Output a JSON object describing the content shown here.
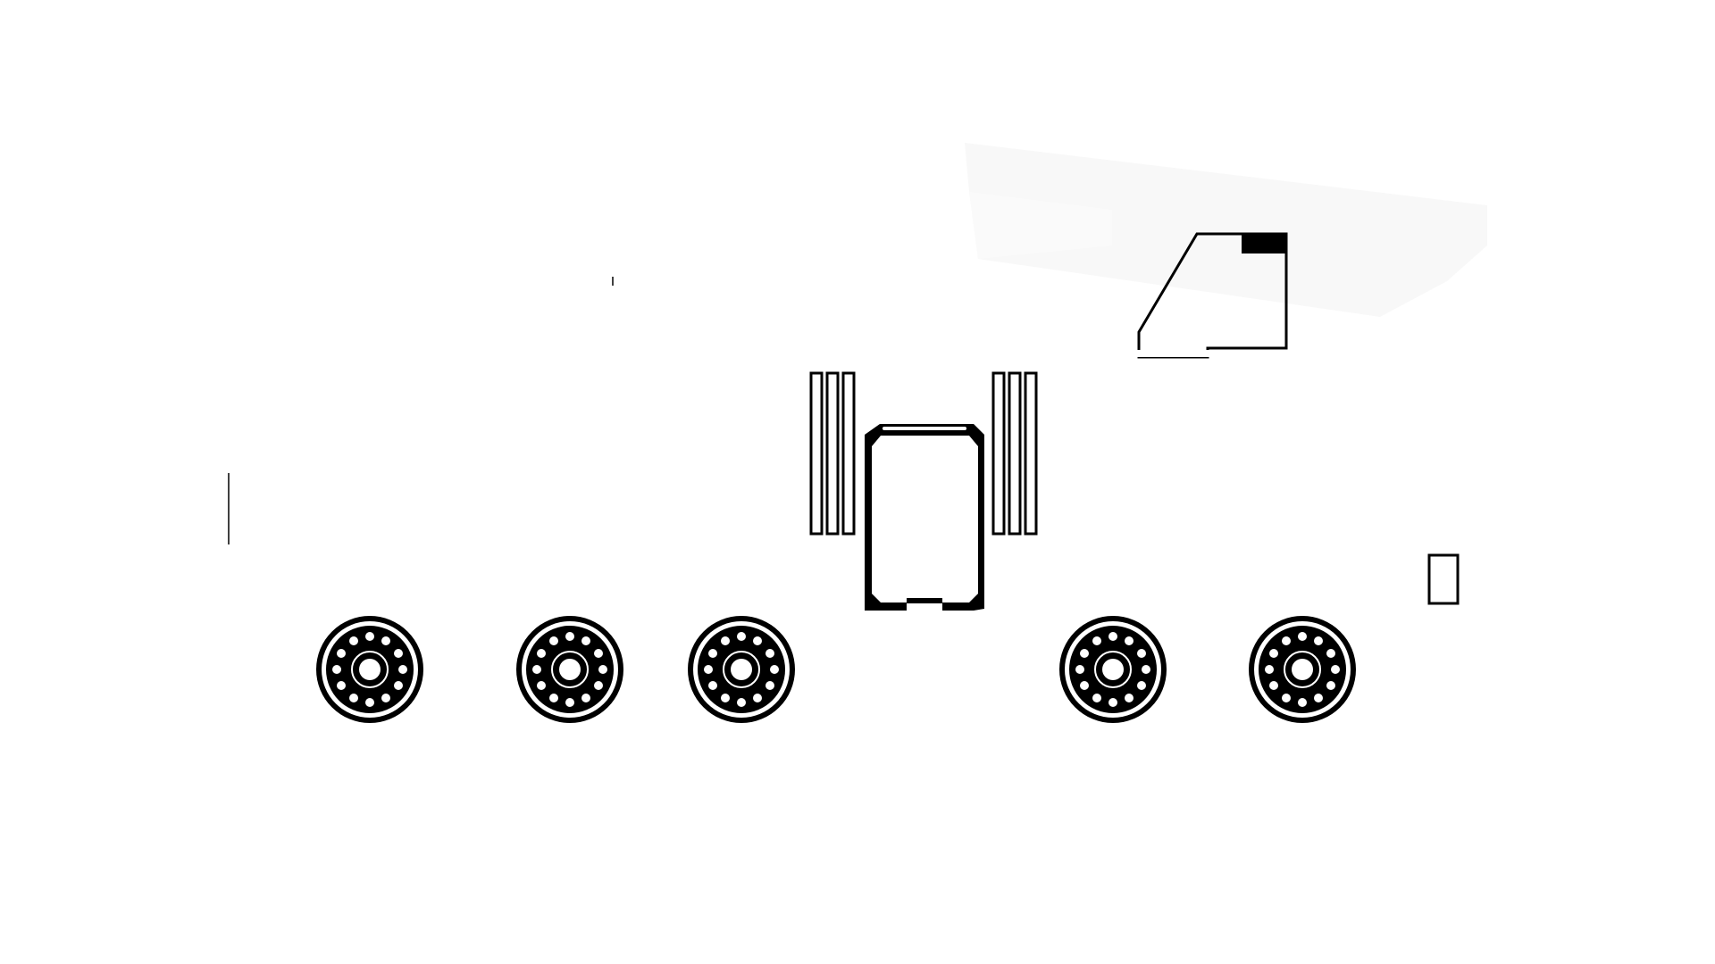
{
  "scene": {
    "description_visible_text": "",
    "colors": {
      "background": "#ffffff",
      "ink": "#000000",
      "panel": "#f8f8f8",
      "hub": "#ffffff"
    },
    "icon_names": [
      "boom-panel-icon",
      "cab-icon",
      "chassis-frame-icon",
      "stabilizer-bars-left-icon",
      "stabilizer-bars-right-icon",
      "wheel-icon",
      "marker-icon"
    ],
    "wheel_count": 5
  }
}
